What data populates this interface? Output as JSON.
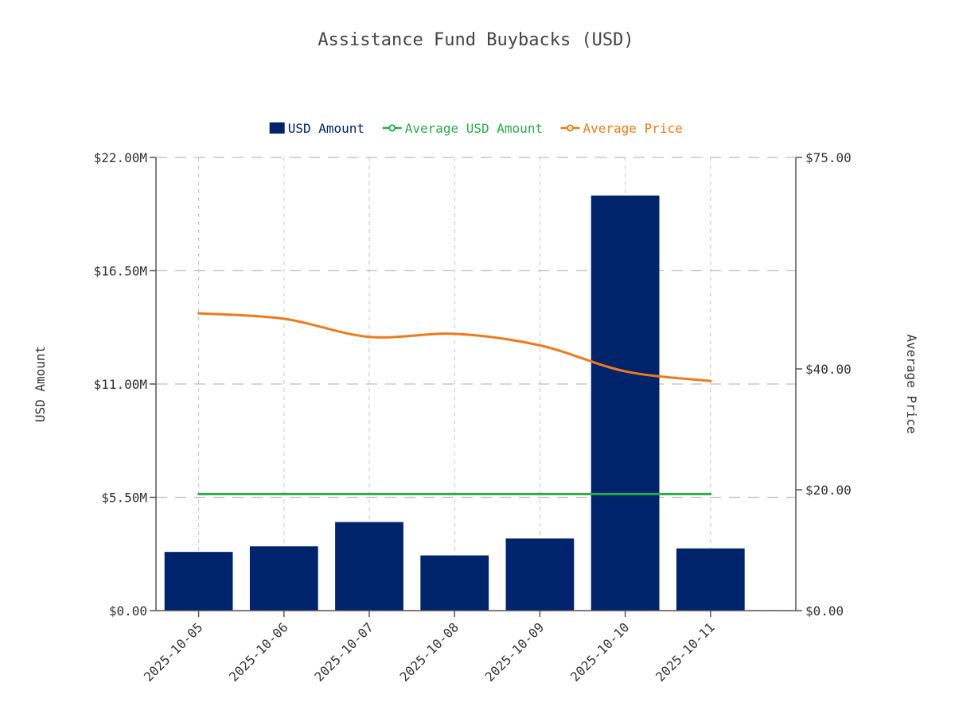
{
  "chart_data": {
    "type": "bar",
    "title": "Assistance Fund Buybacks (USD)",
    "categories": [
      "2025-10-05",
      "2025-10-06",
      "2025-10-07",
      "2025-10-08",
      "2025-10-09",
      "2025-10-10",
      "2025-10-11"
    ],
    "series": [
      {
        "name": "USD Amount",
        "type": "bar",
        "axis": "left",
        "color": "#00246b",
        "values": [
          2.85,
          3.12,
          4.3,
          2.68,
          3.5,
          20.15,
          3.02
        ]
      },
      {
        "name": "Average USD Amount",
        "type": "line",
        "axis": "left",
        "color": "#2ca84a",
        "values": [
          5.66,
          5.66,
          5.66,
          5.66,
          5.66,
          5.66,
          5.66
        ]
      },
      {
        "name": "Average Price",
        "type": "line",
        "axis": "right",
        "smooth": true,
        "color": "#ee7a1a",
        "values": [
          49.2,
          48.3,
          45.3,
          45.8,
          43.9,
          39.6,
          38.0
        ]
      }
    ],
    "y_left": {
      "label": "USD Amount",
      "range": [
        0,
        22
      ],
      "unit": "millions USD",
      "ticks": [
        "$0.00",
        "$5.50M",
        "$11.00M",
        "$16.50M",
        "$22.00M"
      ],
      "tick_values": [
        0,
        5.5,
        11,
        16.5,
        22
      ]
    },
    "y_right": {
      "label": "Average Price",
      "range": [
        0,
        75
      ],
      "ticks": [
        "$0.00",
        "$20.00",
        "$40.00",
        "$75.00"
      ],
      "tick_values": [
        0,
        20,
        40,
        75
      ]
    },
    "grid": true,
    "legend_position": "top-center"
  }
}
